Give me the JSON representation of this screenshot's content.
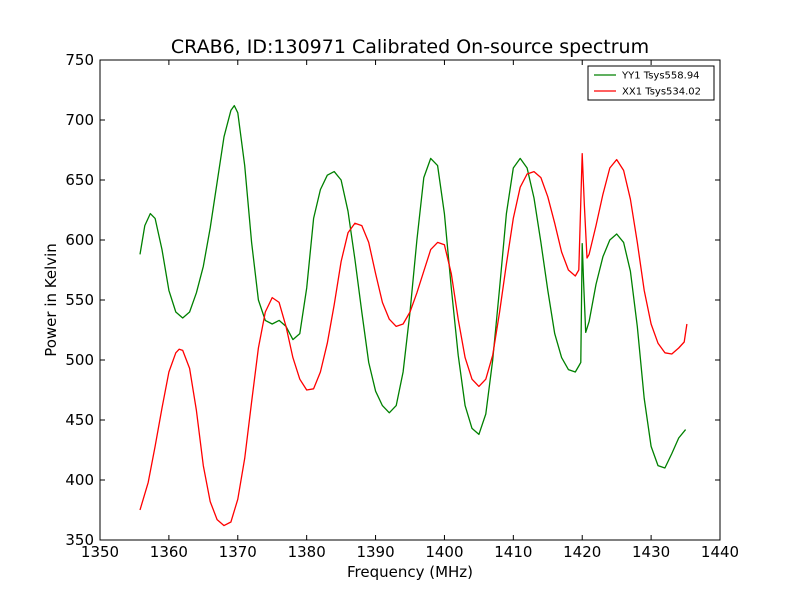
{
  "chart_data": {
    "type": "line",
    "title": "CRAB6, ID:130971 Calibrated On-source spectrum",
    "xlabel": "Frequency (MHz)",
    "ylabel": "Power in Kelvin",
    "xlim": [
      1350,
      1440
    ],
    "ylim": [
      350,
      750
    ],
    "xticks": [
      "1350",
      "1360",
      "1370",
      "1380",
      "1390",
      "1400",
      "1410",
      "1420",
      "1430",
      "1440"
    ],
    "yticks": [
      "350",
      "400",
      "450",
      "500",
      "550",
      "600",
      "650",
      "700",
      "750"
    ],
    "grid": false,
    "legend_position": "top-right",
    "series": [
      {
        "name": "YY1 Tsys558.94",
        "color": "#008000",
        "points": [
          [
            1355.8,
            588
          ],
          [
            1356.5,
            612
          ],
          [
            1357.3,
            622
          ],
          [
            1358.0,
            618
          ],
          [
            1359.0,
            592
          ],
          [
            1360.0,
            558
          ],
          [
            1361.0,
            540
          ],
          [
            1362.0,
            535
          ],
          [
            1363.0,
            540
          ],
          [
            1364.0,
            556
          ],
          [
            1365.0,
            578
          ],
          [
            1366.0,
            610
          ],
          [
            1367.0,
            648
          ],
          [
            1368.0,
            686
          ],
          [
            1369.0,
            708
          ],
          [
            1369.5,
            712
          ],
          [
            1370.0,
            706
          ],
          [
            1371.0,
            662
          ],
          [
            1372.0,
            598
          ],
          [
            1373.0,
            550
          ],
          [
            1374.0,
            533
          ],
          [
            1375.0,
            530
          ],
          [
            1376.0,
            533
          ],
          [
            1377.0,
            528
          ],
          [
            1378.0,
            517
          ],
          [
            1379.0,
            522
          ],
          [
            1380.0,
            560
          ],
          [
            1381.0,
            618
          ],
          [
            1382.0,
            642
          ],
          [
            1383.0,
            654
          ],
          [
            1384.0,
            657
          ],
          [
            1385.0,
            650
          ],
          [
            1386.0,
            624
          ],
          [
            1387.0,
            584
          ],
          [
            1388.0,
            540
          ],
          [
            1389.0,
            498
          ],
          [
            1390.0,
            474
          ],
          [
            1391.0,
            462
          ],
          [
            1392.0,
            456
          ],
          [
            1393.0,
            462
          ],
          [
            1394.0,
            490
          ],
          [
            1395.0,
            540
          ],
          [
            1396.0,
            600
          ],
          [
            1397.0,
            652
          ],
          [
            1398.0,
            668
          ],
          [
            1399.0,
            662
          ],
          [
            1400.0,
            622
          ],
          [
            1401.0,
            560
          ],
          [
            1402.0,
            504
          ],
          [
            1403.0,
            462
          ],
          [
            1404.0,
            443
          ],
          [
            1405.0,
            438
          ],
          [
            1406.0,
            455
          ],
          [
            1407.0,
            500
          ],
          [
            1408.0,
            560
          ],
          [
            1409.0,
            622
          ],
          [
            1410.0,
            660
          ],
          [
            1411.0,
            668
          ],
          [
            1412.0,
            660
          ],
          [
            1413.0,
            635
          ],
          [
            1414.0,
            598
          ],
          [
            1415.0,
            558
          ],
          [
            1416.0,
            522
          ],
          [
            1417.0,
            502
          ],
          [
            1418.0,
            492
          ],
          [
            1419.0,
            490
          ],
          [
            1419.5,
            495
          ],
          [
            1419.8,
            498
          ],
          [
            1420.0,
            597
          ],
          [
            1420.2,
            565
          ],
          [
            1420.5,
            523
          ],
          [
            1421.0,
            532
          ],
          [
            1422.0,
            563
          ],
          [
            1423.0,
            586
          ],
          [
            1424.0,
            600
          ],
          [
            1425.0,
            605
          ],
          [
            1426.0,
            598
          ],
          [
            1427.0,
            574
          ],
          [
            1428.0,
            528
          ],
          [
            1429.0,
            468
          ],
          [
            1430.0,
            428
          ],
          [
            1431.0,
            412
          ],
          [
            1432.0,
            410
          ],
          [
            1433.0,
            422
          ],
          [
            1434.0,
            435
          ],
          [
            1435.0,
            442
          ]
        ]
      },
      {
        "name": "XX1 Tsys534.02",
        "color": "#ff0000",
        "points": [
          [
            1355.8,
            375
          ],
          [
            1357.0,
            398
          ],
          [
            1358.0,
            428
          ],
          [
            1359.0,
            460
          ],
          [
            1360.0,
            490
          ],
          [
            1361.0,
            506
          ],
          [
            1361.5,
            509
          ],
          [
            1362.0,
            508
          ],
          [
            1363.0,
            493
          ],
          [
            1364.0,
            458
          ],
          [
            1365.0,
            412
          ],
          [
            1366.0,
            382
          ],
          [
            1367.0,
            367
          ],
          [
            1368.0,
            362
          ],
          [
            1369.0,
            365
          ],
          [
            1370.0,
            384
          ],
          [
            1371.0,
            418
          ],
          [
            1372.0,
            465
          ],
          [
            1373.0,
            510
          ],
          [
            1374.0,
            540
          ],
          [
            1375.0,
            552
          ],
          [
            1376.0,
            548
          ],
          [
            1377.0,
            528
          ],
          [
            1378.0,
            502
          ],
          [
            1379.0,
            484
          ],
          [
            1380.0,
            475
          ],
          [
            1381.0,
            476
          ],
          [
            1382.0,
            490
          ],
          [
            1383.0,
            514
          ],
          [
            1384.0,
            546
          ],
          [
            1385.0,
            582
          ],
          [
            1386.0,
            606
          ],
          [
            1387.0,
            614
          ],
          [
            1388.0,
            612
          ],
          [
            1389.0,
            598
          ],
          [
            1390.0,
            572
          ],
          [
            1391.0,
            548
          ],
          [
            1392.0,
            534
          ],
          [
            1393.0,
            528
          ],
          [
            1394.0,
            530
          ],
          [
            1395.0,
            540
          ],
          [
            1396.0,
            556
          ],
          [
            1397.0,
            574
          ],
          [
            1398.0,
            592
          ],
          [
            1399.0,
            598
          ],
          [
            1400.0,
            596
          ],
          [
            1401.0,
            572
          ],
          [
            1402.0,
            534
          ],
          [
            1403.0,
            502
          ],
          [
            1404.0,
            484
          ],
          [
            1405.0,
            478
          ],
          [
            1406.0,
            484
          ],
          [
            1407.0,
            504
          ],
          [
            1408.0,
            540
          ],
          [
            1409.0,
            580
          ],
          [
            1410.0,
            618
          ],
          [
            1411.0,
            644
          ],
          [
            1412.0,
            655
          ],
          [
            1413.0,
            657
          ],
          [
            1414.0,
            652
          ],
          [
            1415.0,
            636
          ],
          [
            1416.0,
            614
          ],
          [
            1417.0,
            590
          ],
          [
            1418.0,
            575
          ],
          [
            1419.0,
            570
          ],
          [
            1419.5,
            575
          ],
          [
            1420.0,
            672
          ],
          [
            1420.3,
            630
          ],
          [
            1420.7,
            585
          ],
          [
            1421.0,
            588
          ],
          [
            1422.0,
            612
          ],
          [
            1423.0,
            638
          ],
          [
            1424.0,
            660
          ],
          [
            1425.0,
            667
          ],
          [
            1426.0,
            658
          ],
          [
            1427.0,
            634
          ],
          [
            1428.0,
            598
          ],
          [
            1429.0,
            558
          ],
          [
            1430.0,
            530
          ],
          [
            1431.0,
            514
          ],
          [
            1432.0,
            506
          ],
          [
            1433.0,
            505
          ],
          [
            1434.0,
            510
          ],
          [
            1434.8,
            515
          ],
          [
            1435.2,
            530
          ]
        ]
      }
    ]
  }
}
